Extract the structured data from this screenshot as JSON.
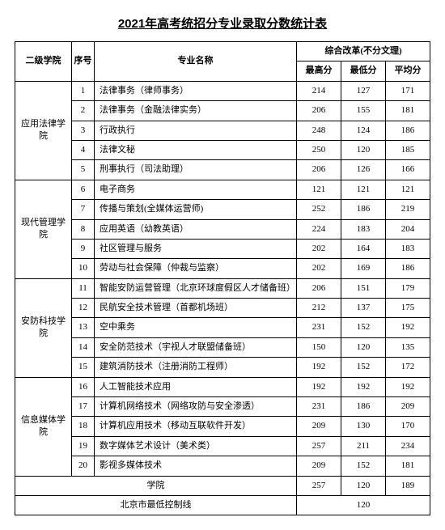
{
  "title": "2021年高考统招分专业录取分数统计表",
  "header": {
    "college": "二级学院",
    "seq": "序号",
    "major": "专业名称",
    "group": "综合改革(不分文理)",
    "max": "最高分",
    "min": "最低分",
    "avg": "平均分"
  },
  "colleges": [
    {
      "name": "应用法律学院",
      "rows": [
        {
          "seq": "1",
          "major": "法律事务（律师事务）",
          "max": "214",
          "min": "127",
          "avg": "171"
        },
        {
          "seq": "2",
          "major": "法律事务（金融法律实务）",
          "max": "206",
          "min": "155",
          "avg": "181"
        },
        {
          "seq": "3",
          "major": "行政执行",
          "max": "248",
          "min": "124",
          "avg": "186"
        },
        {
          "seq": "4",
          "major": "法律文秘",
          "max": "250",
          "min": "120",
          "avg": "185"
        },
        {
          "seq": "5",
          "major": "刑事执行（司法助理）",
          "max": "206",
          "min": "126",
          "avg": "166"
        }
      ]
    },
    {
      "name": "现代管理学院",
      "rows": [
        {
          "seq": "6",
          "major": "电子商务",
          "max": "121",
          "min": "121",
          "avg": "121"
        },
        {
          "seq": "7",
          "major": "传播与策划(全媒体运营师)",
          "max": "252",
          "min": "186",
          "avg": "219"
        },
        {
          "seq": "8",
          "major": "应用英语（幼教英语）",
          "max": "224",
          "min": "183",
          "avg": "204"
        },
        {
          "seq": "9",
          "major": "社区管理与服务",
          "max": "202",
          "min": "164",
          "avg": "183"
        },
        {
          "seq": "10",
          "major": "劳动与社会保障（仲裁与监察）",
          "max": "202",
          "min": "169",
          "avg": "186"
        }
      ]
    },
    {
      "name": "安防科技学院",
      "rows": [
        {
          "seq": "11",
          "major": "智能安防运营管理（北京环球度假区人才储备班）",
          "max": "206",
          "min": "151",
          "avg": "179"
        },
        {
          "seq": "12",
          "major": "民航安全技术管理（首都机场班）",
          "max": "212",
          "min": "137",
          "avg": "175"
        },
        {
          "seq": "13",
          "major": "空中乘务",
          "max": "231",
          "min": "152",
          "avg": "192"
        },
        {
          "seq": "14",
          "major": "安全防范技术（宇视人才联盟储备班）",
          "max": "150",
          "min": "120",
          "avg": "135"
        },
        {
          "seq": "15",
          "major": "建筑消防技术（注册消防工程师）",
          "max": "192",
          "min": "152",
          "avg": "172"
        }
      ]
    },
    {
      "name": "信息媒体学院",
      "rows": [
        {
          "seq": "16",
          "major": "人工智能技术应用",
          "max": "192",
          "min": "192",
          "avg": "192"
        },
        {
          "seq": "17",
          "major": "计算机网络技术（网络攻防与安全渗透）",
          "max": "231",
          "min": "186",
          "avg": "209"
        },
        {
          "seq": "18",
          "major": "计算机应用技术（移动互联软件开发）",
          "max": "209",
          "min": "130",
          "avg": "170"
        },
        {
          "seq": "19",
          "major": "数字媒体艺术设计（美术类）",
          "max": "257",
          "min": "211",
          "avg": "234"
        },
        {
          "seq": "20",
          "major": "影视多媒体技术",
          "max": "209",
          "min": "152",
          "avg": "181"
        }
      ]
    }
  ],
  "summary": {
    "label": "学院",
    "max": "257",
    "min": "120",
    "avg": "189"
  },
  "control": {
    "label": "北京市最低控制线",
    "value": "120"
  }
}
